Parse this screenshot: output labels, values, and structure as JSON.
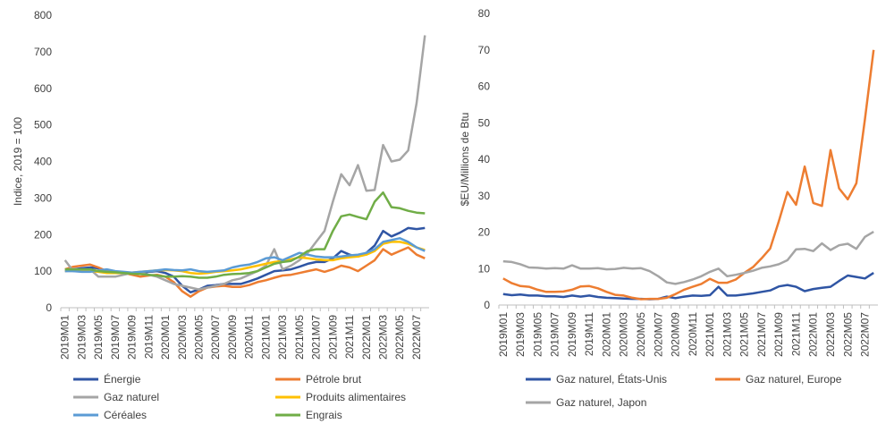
{
  "chart_data": [
    {
      "type": "line",
      "y_label": "Indice, 2019 = 100",
      "categories": [
        "2019M01",
        null,
        "2019M03",
        null,
        "2019M05",
        null,
        "2019M07",
        null,
        "2019M09",
        null,
        "2019M11",
        null,
        "2020M01",
        null,
        "2020M03",
        null,
        "2020M05",
        null,
        "2020M07",
        null,
        "2020M09",
        null,
        "2020M11",
        null,
        "2021M01",
        null,
        "2021M03",
        null,
        "2021M05",
        null,
        "2021M07",
        null,
        "2021M09",
        null,
        "2021M11",
        null,
        "2022M01",
        null,
        "2022M03",
        null,
        "2022M05",
        null,
        "2022M07",
        null
      ],
      "ylim": [
        0,
        800
      ],
      "yticks": [
        0,
        100,
        200,
        300,
        400,
        500,
        600,
        700,
        800
      ],
      "grid": false,
      "series": [
        {
          "name": "Énergie",
          "color": "#2f55a4",
          "values": [
            100,
            105,
            108,
            110,
            108,
            100,
            98,
            97,
            95,
            95,
            98,
            100,
            95,
            85,
            60,
            42,
            50,
            60,
            62,
            65,
            65,
            65,
            72,
            80,
            90,
            100,
            102,
            105,
            112,
            120,
            125,
            125,
            135,
            155,
            145,
            140,
            150,
            170,
            210,
            195,
            205,
            218,
            215,
            218
          ]
        },
        {
          "name": "Pétrole brut",
          "color": "#ed7d31",
          "values": [
            105,
            112,
            115,
            118,
            110,
            100,
            98,
            95,
            90,
            85,
            88,
            90,
            85,
            70,
            45,
            30,
            45,
            55,
            58,
            60,
            57,
            57,
            62,
            70,
            75,
            82,
            88,
            90,
            95,
            100,
            105,
            98,
            105,
            115,
            110,
            100,
            115,
            130,
            160,
            145,
            155,
            165,
            145,
            135
          ]
        },
        {
          "name": "Gaz naturel",
          "color": "#a5a5a5",
          "values": [
            130,
            100,
            100,
            105,
            85,
            85,
            85,
            90,
            95,
            95,
            90,
            85,
            75,
            65,
            60,
            55,
            50,
            55,
            60,
            65,
            75,
            80,
            90,
            100,
            115,
            160,
            105,
            115,
            130,
            150,
            180,
            210,
            290,
            365,
            335,
            390,
            320,
            322,
            445,
            400,
            405,
            430,
            560,
            745
          ]
        },
        {
          "name": "Produits alimentaires",
          "color": "#ffc000",
          "values": [
            100,
            102,
            100,
            100,
            98,
            95,
            95,
            95,
            96,
            98,
            100,
            102,
            103,
            102,
            100,
            95,
            93,
            95,
            98,
            100,
            102,
            105,
            110,
            115,
            120,
            125,
            128,
            132,
            138,
            135,
            132,
            130,
            130,
            135,
            138,
            140,
            145,
            155,
            175,
            180,
            180,
            175,
            165,
            158
          ]
        },
        {
          "name": "Céréales",
          "color": "#5b9bd5",
          "values": [
            100,
            100,
            98,
            98,
            102,
            105,
            100,
            98,
            96,
            98,
            100,
            102,
            105,
            103,
            102,
            105,
            100,
            98,
            100,
            102,
            110,
            115,
            118,
            125,
            135,
            138,
            130,
            140,
            150,
            145,
            140,
            138,
            138,
            140,
            143,
            145,
            150,
            160,
            180,
            185,
            190,
            180,
            165,
            155
          ]
        },
        {
          "name": "Engrais",
          "color": "#70ad47",
          "values": [
            105,
            105,
            105,
            105,
            100,
            98,
            97,
            95,
            93,
            92,
            90,
            88,
            85,
            85,
            86,
            85,
            82,
            82,
            85,
            90,
            92,
            93,
            95,
            100,
            110,
            120,
            125,
            128,
            140,
            155,
            160,
            160,
            210,
            250,
            255,
            248,
            242,
            290,
            315,
            275,
            272,
            265,
            260,
            258
          ]
        }
      ]
    },
    {
      "type": "line",
      "y_label": "$EU/Millions de Btu",
      "categories": [
        "2019M01",
        null,
        "2019M03",
        null,
        "2019M05",
        null,
        "2019M07",
        null,
        "2019M09",
        null,
        "2019M11",
        null,
        "2020M01",
        null,
        "2020M03",
        null,
        "2020M05",
        null,
        "2020M07",
        null,
        "2020M09",
        null,
        "2020M11",
        null,
        "2021M01",
        null,
        "2021M03",
        null,
        "2021M05",
        null,
        "2021M07",
        null,
        "2021M09",
        null,
        "2021M11",
        null,
        "2022M01",
        null,
        "2022M03",
        null,
        "2022M05",
        null,
        "2022M07",
        null
      ],
      "ylim": [
        0,
        80
      ],
      "yticks": [
        0,
        10,
        20,
        30,
        40,
        50,
        60,
        70,
        80
      ],
      "grid": false,
      "series": [
        {
          "name": "Gaz naturel, États-Unis",
          "color": "#2f55a4",
          "values": [
            3.0,
            2.7,
            2.9,
            2.6,
            2.6,
            2.4,
            2.4,
            2.2,
            2.6,
            2.3,
            2.6,
            2.2,
            2.0,
            1.9,
            1.8,
            1.7,
            1.7,
            1.6,
            1.7,
            2.3,
            1.9,
            2.3,
            2.6,
            2.5,
            2.7,
            5.0,
            2.6,
            2.6,
            2.9,
            3.2,
            3.6,
            4.0,
            5.1,
            5.5,
            5.0,
            3.8,
            4.4,
            4.7,
            5.0,
            6.6,
            8.1,
            7.7,
            7.3,
            8.8
          ]
        },
        {
          "name": "Gaz naturel, Europe",
          "color": "#ed7d31",
          "values": [
            7.3,
            6.0,
            5.2,
            5.0,
            4.2,
            3.6,
            3.6,
            3.7,
            4.2,
            5.1,
            5.2,
            4.6,
            3.6,
            2.8,
            2.6,
            2.0,
            1.6,
            1.7,
            1.7,
            2.0,
            3.0,
            4.2,
            5.0,
            5.8,
            7.2,
            6.1,
            6.1,
            7.0,
            8.8,
            10.4,
            12.8,
            15.5,
            23.0,
            31.0,
            27.5,
            38.0,
            28.0,
            27.2,
            42.5,
            32.0,
            29.0,
            33.4,
            51.0,
            70.0
          ]
        },
        {
          "name": "Gaz naturel, Japon",
          "color": "#a5a5a5",
          "values": [
            12.0,
            11.8,
            11.2,
            10.3,
            10.2,
            10.0,
            10.1,
            10.0,
            10.9,
            10.0,
            10.0,
            10.1,
            9.8,
            9.9,
            10.2,
            10.0,
            10.1,
            9.3,
            7.9,
            6.2,
            5.8,
            6.3,
            7.0,
            7.9,
            9.1,
            10.0,
            7.9,
            8.3,
            8.8,
            9.4,
            10.2,
            10.6,
            11.2,
            12.3,
            15.3,
            15.4,
            14.8,
            16.9,
            15.1,
            16.4,
            16.8,
            15.4,
            18.7,
            20.1
          ]
        }
      ]
    }
  ]
}
